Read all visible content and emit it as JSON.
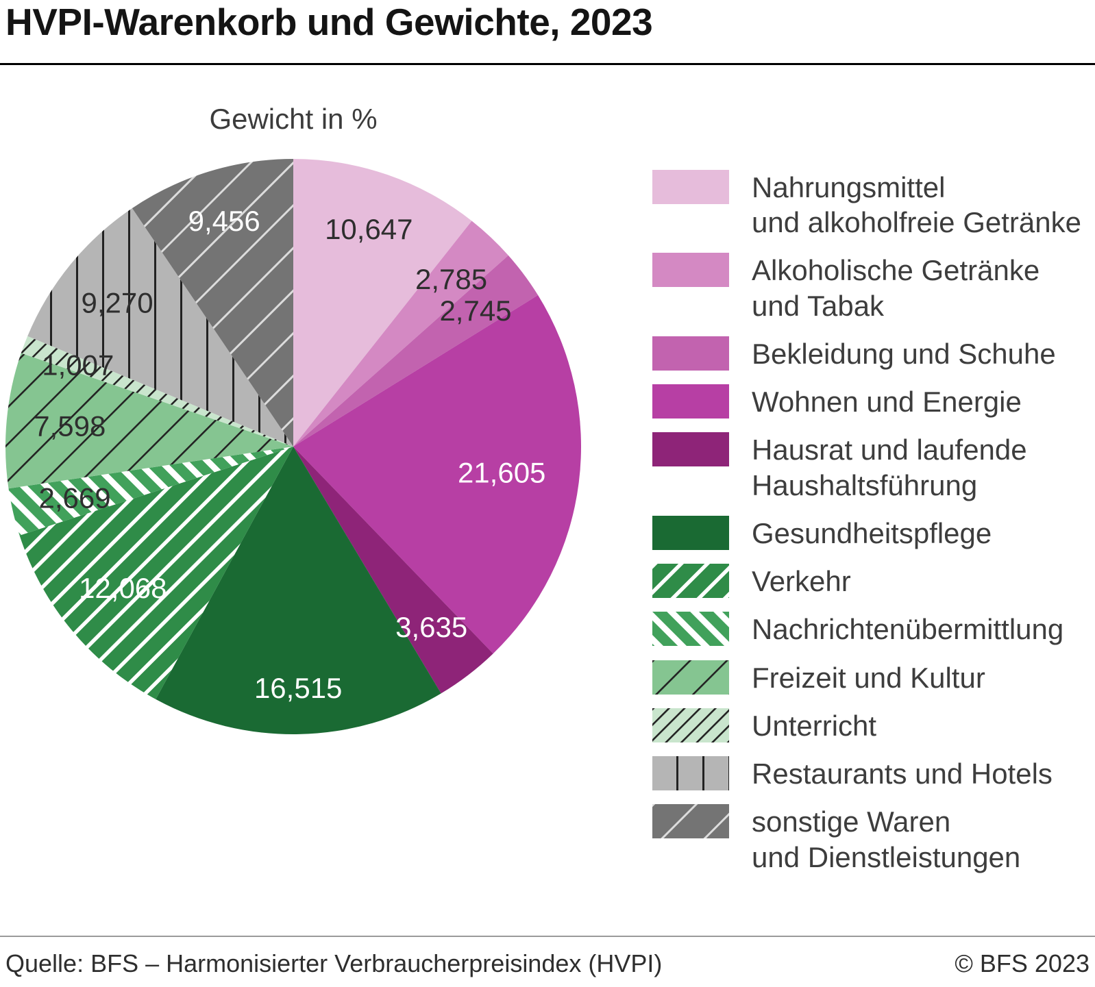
{
  "header": {
    "title": "HVPI-Warenkorb und Gewichte, 2023"
  },
  "chart_data": {
    "type": "pie",
    "title": "Gewicht in %",
    "value_unit": "percent",
    "decimal_separator": ",",
    "start_angle_deg": 0,
    "direction": "clockwise",
    "legend_position": "right",
    "total": 100,
    "slices": [
      {
        "legend_lines": [
          "Nahrungsmittel",
          "und alkoholfreie Getränke"
        ],
        "value": 10.647,
        "display": "10,647",
        "color": "#E6BCDB",
        "pattern": null,
        "text_color": "#2e2e2e"
      },
      {
        "legend_lines": [
          "Alkoholische Getränke",
          "und Tabak"
        ],
        "value": 2.785,
        "display": "2,785",
        "color": "#D489C3",
        "pattern": null,
        "text_color": "#2e2e2e"
      },
      {
        "legend_lines": [
          "Bekleidung und Schuhe"
        ],
        "value": 2.745,
        "display": "2,745",
        "color": "#C263AF",
        "pattern": null,
        "text_color": "#2e2e2e"
      },
      {
        "legend_lines": [
          "Wohnen und Energie"
        ],
        "value": 21.605,
        "display": "21,605",
        "color": "#B73FA4",
        "pattern": null,
        "text_color": "#ffffff"
      },
      {
        "legend_lines": [
          "Hausrat und laufende",
          "Haushaltsführung"
        ],
        "value": 3.635,
        "display": "3,635",
        "color": "#8E2478",
        "pattern": null,
        "text_color": "#ffffff"
      },
      {
        "legend_lines": [
          "Gesundheitspflege"
        ],
        "value": 16.515,
        "display": "16,515",
        "color": "#1A6A33",
        "pattern": null,
        "text_color": "#ffffff"
      },
      {
        "legend_lines": [
          "Verkehr"
        ],
        "value": 12.068,
        "display": "12,068",
        "color": "#2F8C48",
        "pattern": "white-diag-up",
        "text_color": "#ffffff"
      },
      {
        "legend_lines": [
          "Nachrichtenübermittlung"
        ],
        "value": 2.669,
        "display": "2,669",
        "color": "#41A15B",
        "pattern": "white-diag-down",
        "text_color": "#2e2e2e"
      },
      {
        "legend_lines": [
          "Freizeit und Kultur"
        ],
        "value": 7.598,
        "display": "7,598",
        "color": "#85C591",
        "pattern": "black-diag-up-sparse",
        "text_color": "#2e2e2e"
      },
      {
        "legend_lines": [
          "Unterricht"
        ],
        "value": 1.007,
        "display": "1,007",
        "color": "#C9E5CD",
        "pattern": "black-diag-up-dense",
        "text_color": "#2e2e2e"
      },
      {
        "legend_lines": [
          "Restaurants und Hotels"
        ],
        "value": 9.27,
        "display": "9,270",
        "color": "#B5B5B5",
        "pattern": "black-vertical",
        "text_color": "#2e2e2e"
      },
      {
        "legend_lines": [
          "sonstige Waren",
          "und Dienstleistungen"
        ],
        "value": 9.456,
        "display": "9,456",
        "color": "#747474",
        "pattern": "white-diag-up-sparse",
        "text_color": "#ffffff"
      }
    ]
  },
  "footer": {
    "source": "Quelle: BFS – Harmonisierter Verbraucherpreisindex (HVPI)",
    "copyright": "© BFS 2023"
  }
}
